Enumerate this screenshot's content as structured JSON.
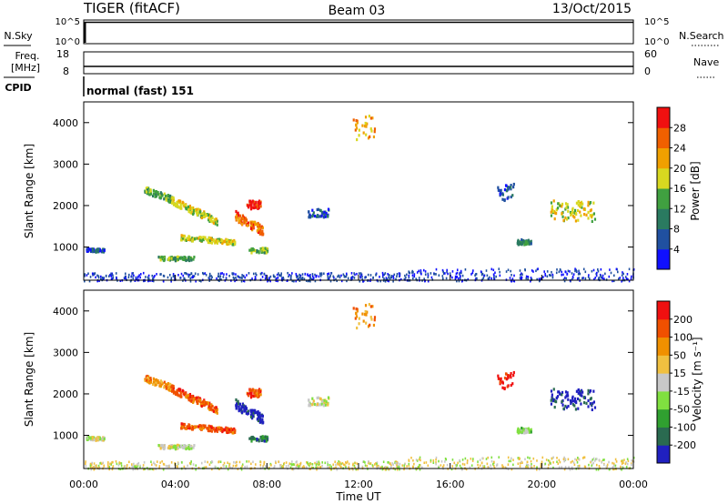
{
  "header": {
    "title": "TIGER (fitACF)",
    "beam": "Beam 03",
    "date": "13/Oct/2015"
  },
  "top_panels": {
    "nsky_label": "N.Sky",
    "nsky_ticks": [
      "10^5",
      "10^0"
    ],
    "nsearch_label": "N.Search",
    "nsearch_ticks": [
      "10^5",
      "10^0"
    ],
    "freq_label": "Freq.",
    "freq_unit": "[MHz]",
    "freq_ticks": [
      "18",
      "8"
    ],
    "nave_label": "Nave",
    "nave_ticks": [
      "60",
      "0"
    ],
    "cpid_label": "CPID",
    "cpid_value": "normal (fast) 151"
  },
  "chart_data": [
    {
      "type": "heatmap",
      "name": "power",
      "ylabel": "Slant Range [km]",
      "ylim": [
        200,
        4500
      ],
      "yticks": [
        "1000",
        "2000",
        "3000",
        "4000"
      ],
      "colorbar_label": "Power [dB]",
      "colorbar_ticks": [
        "4",
        "8",
        "12",
        "16",
        "20",
        "24",
        "28"
      ],
      "colorbar_colors": [
        "#1010ff",
        "#2050a0",
        "#2a7a60",
        "#40a040",
        "#d8d820",
        "#f0a000",
        "#f06000",
        "#f01010"
      ]
    },
    {
      "type": "heatmap",
      "name": "velocity",
      "ylabel": "Slant Range [km]",
      "xlabel": "Time UT",
      "ylim": [
        200,
        4500
      ],
      "yticks": [
        "1000",
        "2000",
        "3000",
        "4000"
      ],
      "xticks": [
        "00:00",
        "04:00",
        "08:00",
        "12:00",
        "16:00",
        "20:00",
        "00:00"
      ],
      "colorbar_label": "Velocity [m s⁻¹]",
      "colorbar_ticks": [
        "200",
        "100",
        "50",
        "15",
        "-15",
        "-50",
        "-100",
        "-200"
      ],
      "colorbar_colors": [
        "#2020c0",
        "#2a6a50",
        "#30a030",
        "#80e040",
        "#c8c8c8",
        "#f0c040",
        "#f09000",
        "#f05000",
        "#f01010"
      ]
    }
  ]
}
